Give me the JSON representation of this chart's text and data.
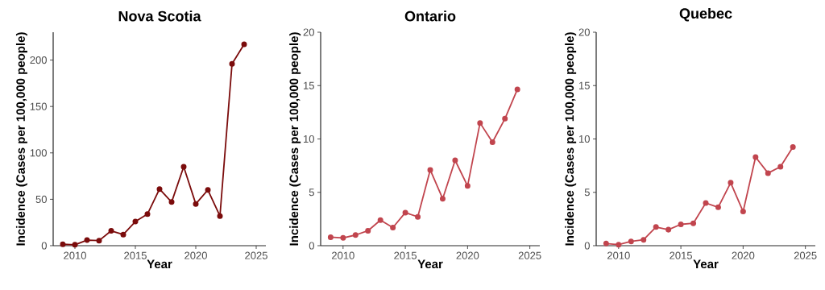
{
  "chart_data": [
    {
      "type": "line",
      "title": "Nova Scotia",
      "xlabel": "Year",
      "ylabel": "Incidence (Cases per 100,000 people)",
      "marker": "circle",
      "line_style": "solid",
      "color": "#7b0c0c",
      "x": [
        2009,
        2010,
        2011,
        2012,
        2013,
        2014,
        2015,
        2016,
        2017,
        2018,
        2019,
        2020,
        2021,
        2022,
        2023,
        2024
      ],
      "values": [
        1.5,
        1,
        6,
        5.5,
        16,
        12,
        26,
        34,
        61,
        47,
        85,
        45,
        60,
        32,
        196,
        217
      ],
      "xlim": [
        2008.2,
        2025.8
      ],
      "ylim": [
        0,
        230
      ],
      "xticks": [
        2010,
        2015,
        2020,
        2025
      ],
      "yticks": [
        0,
        50,
        100,
        150,
        200
      ]
    },
    {
      "type": "line",
      "title": "Ontario",
      "xlabel": "Year",
      "ylabel": "Incidence (Cases per 100,000 people)",
      "marker": "circle",
      "line_style": "solid",
      "color": "#c1454e",
      "x": [
        2009,
        2010,
        2011,
        2012,
        2013,
        2014,
        2015,
        2016,
        2017,
        2018,
        2019,
        2020,
        2021,
        2022,
        2023,
        2024
      ],
      "values": [
        0.8,
        0.73,
        1.0,
        1.4,
        2.4,
        1.7,
        3.1,
        2.7,
        7.1,
        4.4,
        8.0,
        5.6,
        11.5,
        9.7,
        11.9,
        14.65
      ],
      "xlim": [
        2008.2,
        2025.8
      ],
      "ylim": [
        0,
        20
      ],
      "xticks": [
        2010,
        2015,
        2020,
        2025
      ],
      "yticks": [
        0,
        5,
        10,
        15,
        20
      ]
    },
    {
      "type": "line",
      "title": "Quebec",
      "xlabel": "Year",
      "ylabel": "Incidence (Cases per 100,000 people)",
      "marker": "circle",
      "line_style": "solid",
      "color": "#c1454e",
      "x": [
        2009,
        2010,
        2011,
        2012,
        2013,
        2014,
        2015,
        2016,
        2017,
        2018,
        2019,
        2020,
        2021,
        2022,
        2023,
        2024
      ],
      "values": [
        0.2,
        0.1,
        0.4,
        0.55,
        1.75,
        1.5,
        2.0,
        2.1,
        4.0,
        3.6,
        5.9,
        3.2,
        8.3,
        6.8,
        7.4,
        9.25
      ],
      "xlim": [
        2008.2,
        2025.8
      ],
      "ylim": [
        0,
        20
      ],
      "xticks": [
        2010,
        2015,
        2020,
        2025
      ],
      "yticks": [
        0,
        5,
        10,
        15,
        20
      ]
    }
  ]
}
